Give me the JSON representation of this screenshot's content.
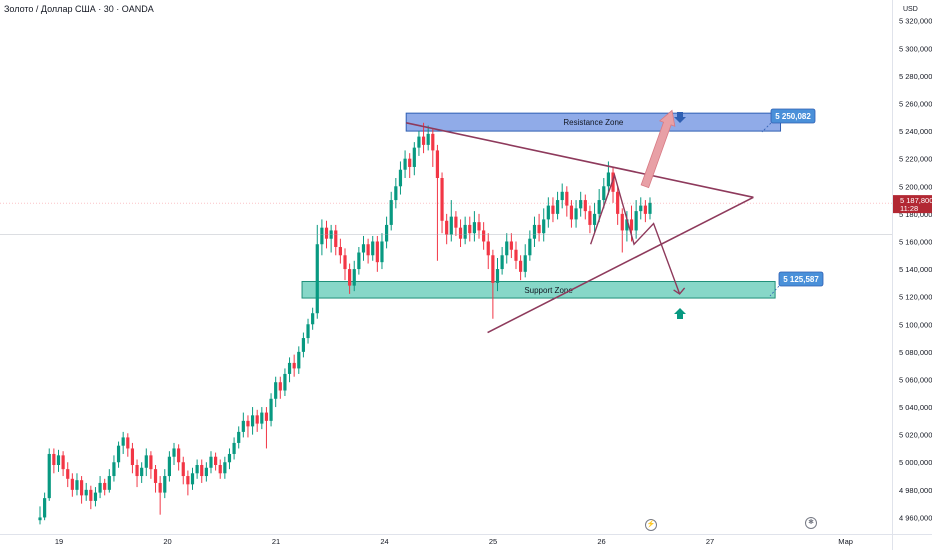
{
  "header": {
    "title": "Золото / Доллар США · 30 · OANDA",
    "currency": "USD"
  },
  "colors": {
    "up": "#089981",
    "down": "#f23645",
    "resistance_fill": "#6b8fe0",
    "support_fill": "#5fc9b5",
    "triangle_line": "#8e3a5c",
    "price_tag": "#b22833",
    "callout_fill": "#4a90d9",
    "arrow_up": "#e8a0a6"
  },
  "chart_data": {
    "type": "candlestick",
    "title": "Золото / Доллар США · 30 · OANDA",
    "ylabel": "USD",
    "ylim": [
      4948000,
      5335000
    ],
    "y_ticks": [
      "5 320,000",
      "5 300,000",
      "5 280,000",
      "5 260,000",
      "5 240,000",
      "5 220,000",
      "5 200,000",
      "5 180,000",
      "5 160,000",
      "5 140,000",
      "5 120,000",
      "5 100,000",
      "5 080,000",
      "5 060,000",
      "5 040,000",
      "5 020,000",
      "5 000,000",
      "4 980,000",
      "4 960,000"
    ],
    "y_tick_values": [
      5320000,
      5300000,
      5280000,
      5260000,
      5240000,
      5220000,
      5200000,
      5180000,
      5160000,
      5140000,
      5120000,
      5100000,
      5080000,
      5060000,
      5040000,
      5020000,
      5000000,
      4980000,
      4960000
    ],
    "x_labels": [
      "19",
      "20",
      "21",
      "24",
      "25",
      "26",
      "27",
      "Мар"
    ],
    "x_label_positions": [
      0.0,
      1.0,
      2.0,
      3.0,
      4.0,
      5.0,
      6.0,
      7.25
    ],
    "last_price": "5 187,800",
    "last_price_value": 5187800,
    "countdown": "11:28",
    "resistance_zone": {
      "label": "Resistance Zone",
      "low": 5240000,
      "high": 5253000,
      "x_start": 3.2,
      "x_end": 6.65
    },
    "support_zone": {
      "label": "Support Zone",
      "low": 5119000,
      "high": 5131000,
      "x_start": 2.24,
      "x_end": 6.6
    },
    "resistance_callout": "5 250,082",
    "support_callout": "5 125,587",
    "triangle": {
      "upper": [
        [
          3.2,
          5246000
        ],
        [
          6.4,
          5192000
        ]
      ],
      "lower": [
        [
          3.95,
          5094000
        ],
        [
          6.4,
          5192000
        ]
      ]
    },
    "projection_path": [
      [
        4.9,
        5158000
      ],
      [
        5.12,
        5208000
      ],
      [
        5.3,
        5158000
      ],
      [
        5.48,
        5173000
      ],
      [
        5.72,
        5122000
      ]
    ],
    "breakout_arrow": [
      [
        5.4,
        5200000
      ],
      [
        5.65,
        5255000
      ]
    ],
    "candles": [
      [
        4958000,
        4960000,
        4955000,
        4968000
      ],
      [
        4960000,
        4974000,
        4958000,
        4978000
      ],
      [
        4974000,
        5006000,
        4972000,
        5010000
      ],
      [
        5006000,
        4998000,
        4992000,
        5010000
      ],
      [
        4998000,
        5005000,
        4993000,
        5009000
      ],
      [
        5005000,
        4995000,
        4990000,
        5008000
      ],
      [
        4995000,
        4988000,
        4982000,
        5000000
      ],
      [
        4988000,
        4980000,
        4975000,
        4992000
      ],
      [
        4980000,
        4987000,
        4976000,
        4992000
      ],
      [
        4987000,
        4976000,
        4970000,
        4990000
      ],
      [
        4976000,
        4980000,
        4972000,
        4985000
      ],
      [
        4980000,
        4972000,
        4966000,
        4983000
      ],
      [
        4972000,
        4978000,
        4968000,
        4982000
      ],
      [
        4978000,
        4985000,
        4974000,
        4990000
      ],
      [
        4985000,
        4980000,
        4976000,
        4988000
      ],
      [
        4980000,
        4990000,
        4978000,
        4995000
      ],
      [
        4990000,
        5000000,
        4986000,
        5005000
      ],
      [
        5000000,
        5012000,
        4996000,
        5015000
      ],
      [
        5012000,
        5018000,
        5006000,
        5022000
      ],
      [
        5018000,
        5010000,
        5004000,
        5021000
      ],
      [
        5010000,
        4998000,
        4992000,
        5014000
      ],
      [
        4998000,
        4990000,
        4982000,
        5002000
      ],
      [
        4990000,
        4996000,
        4985000,
        5000000
      ],
      [
        4996000,
        5005000,
        4990000,
        5010000
      ],
      [
        5005000,
        4995000,
        4988000,
        5008000
      ],
      [
        4995000,
        4985000,
        4978000,
        4998000
      ],
      [
        4985000,
        4978000,
        4962000,
        4990000
      ],
      [
        4978000,
        4990000,
        4974000,
        4995000
      ],
      [
        4990000,
        5004000,
        4986000,
        5008000
      ],
      [
        5004000,
        5010000,
        4998000,
        5014000
      ],
      [
        5010000,
        5000000,
        4994000,
        5013000
      ],
      [
        5000000,
        4990000,
        4984000,
        5004000
      ],
      [
        4990000,
        4984000,
        4976000,
        4994000
      ],
      [
        4984000,
        4992000,
        4980000,
        4996000
      ],
      [
        4992000,
        4998000,
        4988000,
        5002000
      ],
      [
        4998000,
        4990000,
        4985000,
        5002000
      ],
      [
        4990000,
        4996000,
        4986000,
        5000000
      ],
      [
        4996000,
        5004000,
        4992000,
        5008000
      ],
      [
        5004000,
        4998000,
        4994000,
        5007000
      ],
      [
        4998000,
        4992000,
        4988000,
        5002000
      ],
      [
        4992000,
        5000000,
        4988000,
        5004000
      ],
      [
        5000000,
        5006000,
        4995000,
        5010000
      ],
      [
        5006000,
        5014000,
        5002000,
        5018000
      ],
      [
        5014000,
        5022000,
        5010000,
        5026000
      ],
      [
        5022000,
        5030000,
        5018000,
        5036000
      ],
      [
        5030000,
        5026000,
        5018000,
        5034000
      ],
      [
        5026000,
        5034000,
        5020000,
        5040000
      ],
      [
        5034000,
        5028000,
        5022000,
        5038000
      ],
      [
        5028000,
        5036000,
        5024000,
        5040000
      ],
      [
        5036000,
        5030000,
        5010000,
        5040000
      ],
      [
        5030000,
        5046000,
        5026000,
        5050000
      ],
      [
        5046000,
        5058000,
        5040000,
        5062000
      ],
      [
        5058000,
        5052000,
        5046000,
        5062000
      ],
      [
        5052000,
        5064000,
        5048000,
        5068000
      ],
      [
        5064000,
        5072000,
        5058000,
        5076000
      ],
      [
        5072000,
        5068000,
        5062000,
        5078000
      ],
      [
        5068000,
        5080000,
        5064000,
        5084000
      ],
      [
        5080000,
        5090000,
        5076000,
        5094000
      ],
      [
        5090000,
        5100000,
        5086000,
        5104000
      ],
      [
        5100000,
        5108000,
        5096000,
        5112000
      ],
      [
        5108000,
        5158000,
        5104000,
        5172000
      ],
      [
        5158000,
        5170000,
        5150000,
        5176000
      ],
      [
        5170000,
        5162000,
        5155000,
        5175000
      ],
      [
        5162000,
        5168000,
        5152000,
        5172000
      ],
      [
        5168000,
        5156000,
        5150000,
        5172000
      ],
      [
        5156000,
        5150000,
        5144000,
        5162000
      ],
      [
        5150000,
        5140000,
        5132000,
        5155000
      ],
      [
        5140000,
        5128000,
        5122000,
        5144000
      ],
      [
        5128000,
        5140000,
        5124000,
        5146000
      ],
      [
        5140000,
        5152000,
        5136000,
        5156000
      ],
      [
        5152000,
        5158000,
        5146000,
        5164000
      ],
      [
        5158000,
        5150000,
        5144000,
        5162000
      ],
      [
        5150000,
        5160000,
        5146000,
        5164000
      ],
      [
        5160000,
        5145000,
        5138000,
        5164000
      ],
      [
        5145000,
        5160000,
        5140000,
        5166000
      ],
      [
        5160000,
        5172000,
        5155000,
        5178000
      ],
      [
        5172000,
        5190000,
        5168000,
        5196000
      ],
      [
        5190000,
        5200000,
        5184000,
        5206000
      ],
      [
        5200000,
        5212000,
        5194000,
        5218000
      ],
      [
        5212000,
        5220000,
        5206000,
        5226000
      ],
      [
        5220000,
        5214000,
        5206000,
        5224000
      ],
      [
        5214000,
        5228000,
        5208000,
        5232000
      ],
      [
        5228000,
        5236000,
        5222000,
        5240000
      ],
      [
        5236000,
        5230000,
        5224000,
        5246000
      ],
      [
        5230000,
        5238000,
        5226000,
        5244000
      ],
      [
        5238000,
        5226000,
        5214000,
        5242000
      ],
      [
        5226000,
        5206000,
        5146000,
        5230000
      ],
      [
        5206000,
        5175000,
        5166000,
        5210000
      ],
      [
        5175000,
        5165000,
        5158000,
        5180000
      ],
      [
        5165000,
        5178000,
        5160000,
        5190000
      ],
      [
        5178000,
        5170000,
        5164000,
        5182000
      ],
      [
        5170000,
        5162000,
        5156000,
        5176000
      ],
      [
        5162000,
        5172000,
        5158000,
        5178000
      ],
      [
        5172000,
        5166000,
        5160000,
        5178000
      ],
      [
        5166000,
        5174000,
        5160000,
        5182000
      ],
      [
        5174000,
        5168000,
        5162000,
        5180000
      ],
      [
        5168000,
        5160000,
        5154000,
        5174000
      ],
      [
        5160000,
        5150000,
        5140000,
        5166000
      ],
      [
        5150000,
        5130000,
        5104000,
        5154000
      ],
      [
        5130000,
        5140000,
        5124000,
        5148000
      ],
      [
        5140000,
        5150000,
        5136000,
        5156000
      ],
      [
        5150000,
        5160000,
        5144000,
        5166000
      ],
      [
        5160000,
        5154000,
        5148000,
        5166000
      ],
      [
        5154000,
        5146000,
        5140000,
        5160000
      ],
      [
        5146000,
        5138000,
        5132000,
        5150000
      ],
      [
        5138000,
        5150000,
        5134000,
        5158000
      ],
      [
        5150000,
        5162000,
        5146000,
        5168000
      ],
      [
        5162000,
        5172000,
        5156000,
        5178000
      ],
      [
        5172000,
        5166000,
        5160000,
        5180000
      ],
      [
        5166000,
        5176000,
        5160000,
        5184000
      ],
      [
        5176000,
        5186000,
        5170000,
        5192000
      ],
      [
        5186000,
        5180000,
        5174000,
        5192000
      ],
      [
        5180000,
        5190000,
        5176000,
        5196000
      ],
      [
        5190000,
        5196000,
        5184000,
        5202000
      ],
      [
        5196000,
        5186000,
        5178000,
        5200000
      ],
      [
        5186000,
        5176000,
        5170000,
        5190000
      ],
      [
        5176000,
        5184000,
        5170000,
        5190000
      ],
      [
        5184000,
        5190000,
        5178000,
        5196000
      ],
      [
        5190000,
        5182000,
        5176000,
        5194000
      ],
      [
        5182000,
        5172000,
        5166000,
        5186000
      ],
      [
        5172000,
        5180000,
        5166000,
        5188000
      ],
      [
        5180000,
        5190000,
        5174000,
        5198000
      ],
      [
        5190000,
        5200000,
        5184000,
        5206000
      ],
      [
        5200000,
        5210000,
        5194000,
        5218000
      ],
      [
        5210000,
        5196000,
        5188000,
        5214000
      ],
      [
        5196000,
        5180000,
        5172000,
        5200000
      ],
      [
        5180000,
        5168000,
        5152000,
        5184000
      ],
      [
        5168000,
        5176000,
        5160000,
        5182000
      ],
      [
        5176000,
        5168000,
        5160000,
        5186000
      ],
      [
        5168000,
        5182000,
        5162000,
        5190000
      ],
      [
        5182000,
        5186000,
        5176000,
        5192000
      ],
      [
        5186000,
        5180000,
        5174000,
        5190000
      ],
      [
        5180000,
        5188000,
        5176000,
        5192000
      ]
    ]
  }
}
